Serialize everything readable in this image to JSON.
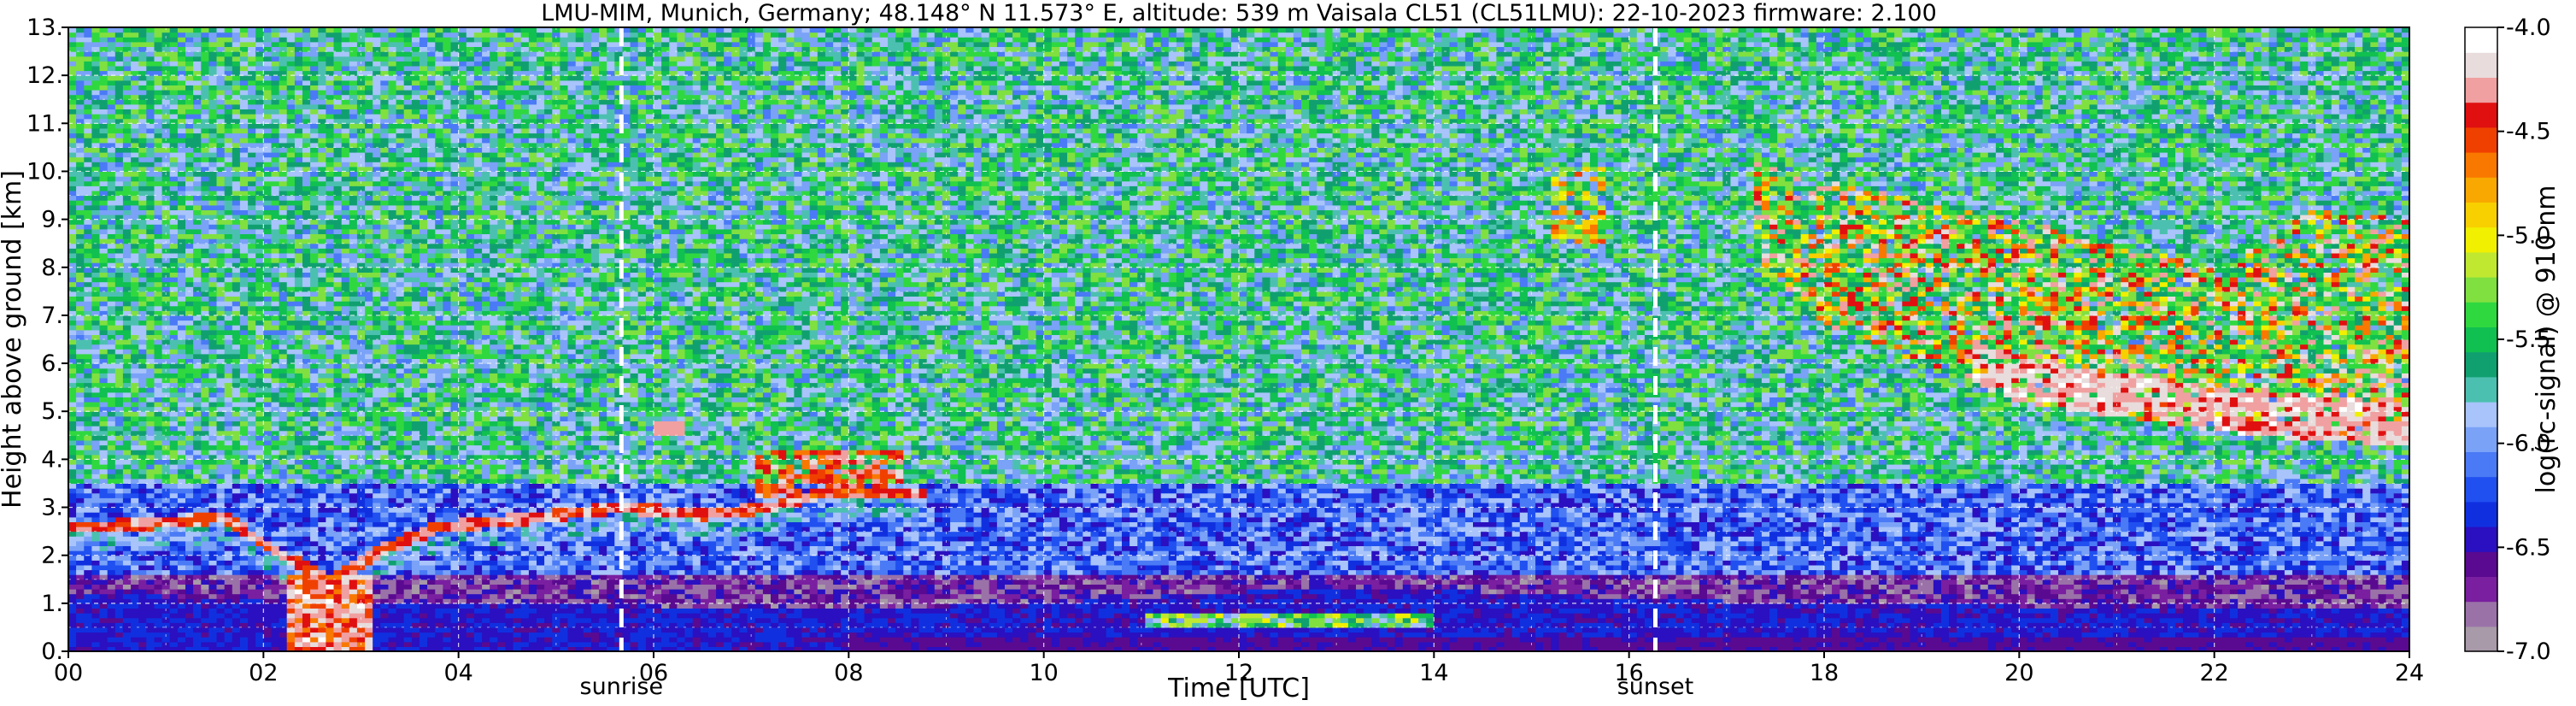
{
  "chart_data": {
    "type": "heatmap",
    "title": "LMU-MIM, Munich, Germany; 48.148° N 11.573° E, altitude: 539 m    Vaisala CL51 (CL51LMU): 22-10-2023    firmware: 2.100",
    "xlabel": "Time [UTC]",
    "ylabel": "Height above ground [km]",
    "xlim": [
      0,
      24
    ],
    "ylim": [
      0,
      13
    ],
    "x_ticks": [
      "00",
      "02",
      "04",
      "06",
      "08",
      "10",
      "12",
      "14",
      "16",
      "18",
      "20",
      "22",
      "24"
    ],
    "y_ticks": [
      "0.",
      "1.",
      "2.",
      "3.",
      "4.",
      "5.",
      "6.",
      "7.",
      "8.",
      "9.",
      "10.",
      "11.",
      "12.",
      "13."
    ],
    "grid": true,
    "colorbar": {
      "label": "log(rc-signal) @ 910 nm",
      "range": [
        -7.0,
        -4.0
      ],
      "ticks": [
        "-4.0",
        "-4.5",
        "-5.0",
        "-5.5",
        "-6.0",
        "-6.5",
        "-7.0"
      ],
      "colors": [
        "#a89aa8",
        "#9a72a8",
        "#7a1fa0",
        "#5a0a90",
        "#2a10c0",
        "#1030e0",
        "#2050f0",
        "#4a7af5",
        "#7aa2f7",
        "#a8c4fa",
        "#4cc0b0",
        "#10a070",
        "#10c050",
        "#30d840",
        "#80e040",
        "#c0e830",
        "#f0f000",
        "#f8d000",
        "#f8a800",
        "#f87800",
        "#f04000",
        "#e01010",
        "#f0a0a0",
        "#e8dcdc",
        "#ffffff"
      ]
    },
    "vlines": [
      {
        "label": "sunrise",
        "x": 5.67
      },
      {
        "label": "sunset",
        "x": 16.27
      }
    ],
    "features": [
      {
        "name": "boundary layer top",
        "x": [
          0.0,
          0.8,
          1.6,
          2.2,
          2.7,
          3.2,
          3.8,
          4.4,
          5.0,
          5.7,
          6.5,
          7.2,
          7.8,
          8.6
        ],
        "y": [
          2.6,
          2.65,
          2.8,
          2.0,
          1.5,
          2.1,
          2.6,
          2.7,
          2.85,
          3.0,
          2.85,
          3.0,
          3.35,
          3.3
        ]
      },
      {
        "name": "mid cloud",
        "x": [
          6.0,
          6.2,
          7.0,
          7.5,
          7.7
        ],
        "y": [
          4.65,
          4.7,
          3.2,
          4.0,
          3.4
        ]
      },
      {
        "name": "aerosol layer top",
        "x": [
          0,
          4,
          8,
          10,
          12,
          14,
          16,
          18,
          20,
          22,
          24
        ],
        "y": [
          1.2,
          1.0,
          0.9,
          1.0,
          1.25,
          1.3,
          1.1,
          1.0,
          0.95,
          0.95,
          0.95
        ]
      },
      {
        "name": "cirrus base",
        "x": [
          17.3,
          18.0,
          19.0,
          20.0,
          21.0,
          22.0,
          23.0,
          24.0
        ],
        "y": [
          8.0,
          6.8,
          6.0,
          5.2,
          4.9,
          4.6,
          4.4,
          4.3
        ]
      },
      {
        "name": "cirrus top",
        "x": [
          17.3,
          18.0,
          19.0,
          20.0,
          21.0,
          22.0,
          23.0,
          24.0
        ],
        "y": [
          10.3,
          9.8,
          9.4,
          9.0,
          8.5,
          8.0,
          9.2,
          9.0
        ]
      }
    ]
  }
}
